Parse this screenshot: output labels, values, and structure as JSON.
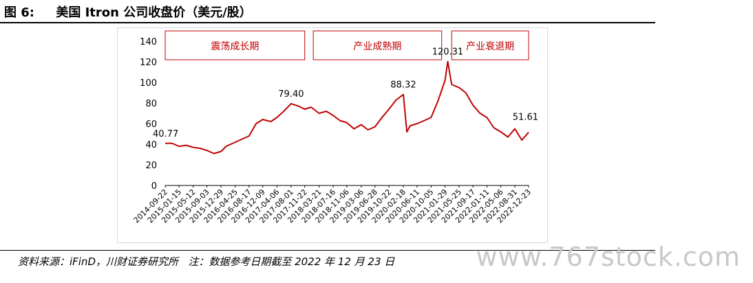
{
  "figure": {
    "title": "图 6:     美国 Itron 公司收盘价（美元/股）",
    "source": "资料来源：iFinD，川财证券研究所   注：数据参考日期截至 2022 年 12 月 23 日",
    "watermark": "www.767stock.com"
  },
  "colors": {
    "line": "#c00000",
    "box": "#c00000",
    "axis": "#000000"
  },
  "chart_data": {
    "type": "line",
    "title": "",
    "xlabel": "",
    "ylabel": "",
    "ylim": [
      0,
      140
    ],
    "yticks": [
      0,
      20,
      40,
      60,
      80,
      100,
      120,
      140
    ],
    "grid": false,
    "x_tick_labels": [
      "2014-09-22",
      "2015-01-15",
      "2015-05-12",
      "2015-09-03",
      "2015-12-29",
      "2016-04-25",
      "2016-08-17",
      "2016-12-09",
      "2017-04-06",
      "2017-08-01",
      "2017-11-22",
      "2018-03-21",
      "2018-07-16",
      "2018-11-06",
      "2019-03-06",
      "2019-06-28",
      "2019-10-22",
      "2020-02-18",
      "2020-06-11",
      "2020-10-05",
      "2021-01-29",
      "2021-05-25",
      "2021-09-17",
      "2022-01-11",
      "2022-05-06",
      "2022-08-31",
      "2022-12-23"
    ],
    "series": [
      {
        "x": [
          "2014-09-22",
          "2014-11-15",
          "2015-01-15",
          "2015-03-15",
          "2015-05-12",
          "2015-07-10",
          "2015-09-03",
          "2015-11-01",
          "2015-12-29",
          "2016-02-10",
          "2016-04-25",
          "2016-06-20",
          "2016-08-17",
          "2016-10-15",
          "2016-12-09",
          "2017-02-15",
          "2017-04-06",
          "2017-06-01",
          "2017-08-01",
          "2017-10-01",
          "2017-11-22",
          "2018-01-15",
          "2018-03-21",
          "2018-05-20",
          "2018-07-16",
          "2018-09-10",
          "2018-11-06",
          "2019-01-05",
          "2019-03-06",
          "2019-05-01",
          "2019-06-28",
          "2019-08-25",
          "2019-10-22",
          "2019-12-20",
          "2020-02-18",
          "2020-03-18",
          "2020-04-15",
          "2020-06-11",
          "2020-08-10",
          "2020-10-05",
          "2020-12-01",
          "2021-01-29",
          "2021-02-20",
          "2021-03-25",
          "2021-05-25",
          "2021-07-20",
          "2021-09-17",
          "2021-11-15",
          "2022-01-11",
          "2022-03-10",
          "2022-05-06",
          "2022-07-05",
          "2022-08-31",
          "2022-10-28",
          "2022-12-23"
        ],
        "values": [
          40.77,
          41,
          38,
          39,
          37,
          36,
          34,
          31,
          33,
          38,
          42,
          45,
          48,
          60,
          64,
          62,
          66,
          72,
          79.4,
          77,
          74,
          76,
          70,
          72,
          68,
          63,
          61,
          55,
          59,
          54,
          57,
          66,
          74,
          83,
          88.32,
          52,
          58,
          60,
          63,
          66,
          82,
          102,
          120.31,
          98,
          95,
          90,
          78,
          70,
          66,
          56,
          52,
          47,
          55,
          44,
          51.61
        ]
      }
    ],
    "annotations": [
      {
        "x": "2014-09-22",
        "y": 40.77,
        "text": "40.77"
      },
      {
        "x": "2017-08-01",
        "y": 79.4,
        "text": "79.40"
      },
      {
        "x": "2020-02-18",
        "y": 88.32,
        "text": "88.32"
      },
      {
        "x": "2021-02-20",
        "y": 120.31,
        "text": "120.31"
      },
      {
        "x": "2022-12-23",
        "y": 51.61,
        "text": "51.61"
      }
    ],
    "phases": [
      {
        "label": "震荡成长期",
        "start": "2014-09-22",
        "end": "2017-11-22"
      },
      {
        "label": "产业成熟期",
        "start": "2018-02-01",
        "end": "2021-01-01"
      },
      {
        "label": "产业衰退期",
        "start": "2021-03-25",
        "end": "2022-12-23"
      }
    ]
  }
}
